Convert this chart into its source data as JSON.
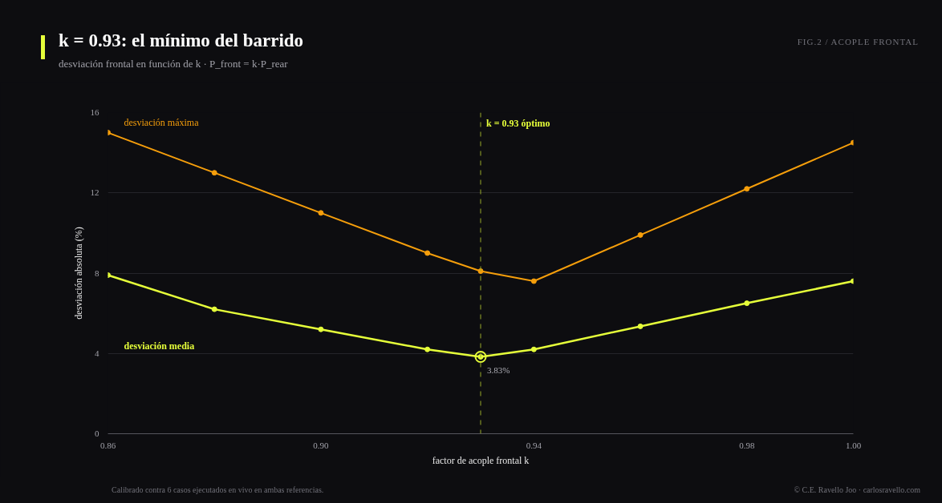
{
  "chart_data": {
    "type": "line",
    "title": "k = 0.93: el mínimo del barrido",
    "subtitle": "desviación frontal en función de k · P_front = k·P_rear",
    "xlabel": "factor de acople frontal k",
    "ylabel": "desviación absoluta (%)",
    "x": [
      0.86,
      0.88,
      0.9,
      0.92,
      0.93,
      0.94,
      0.96,
      0.98,
      1.0
    ],
    "series": [
      {
        "name": "desviación máxima",
        "color": "#f59e0b",
        "values": [
          15.0,
          13.0,
          11.0,
          9.0,
          8.1,
          7.6,
          9.9,
          12.2,
          14.5
        ]
      },
      {
        "name": "desviación media",
        "color": "#e6ff3a",
        "values": [
          7.9,
          6.2,
          5.2,
          4.2,
          3.83,
          4.2,
          5.35,
          6.5,
          7.6
        ]
      }
    ],
    "xlim": [
      0.86,
      1.0
    ],
    "xticks": [
      {
        "value": 0.86,
        "label": "0.86"
      },
      {
        "value": 0.9,
        "label": "0.90"
      },
      {
        "value": 0.94,
        "label": "0.94"
      },
      {
        "value": 0.98,
        "label": "0.98"
      },
      {
        "value": 1.0,
        "label": "1.00"
      }
    ],
    "ylim": [
      0,
      16
    ],
    "yticks": [
      0,
      4,
      8,
      12,
      16
    ],
    "grid": "y",
    "marker": "circle",
    "line_style": "solid",
    "legend": false,
    "ref_lines": [
      {
        "axis": "x",
        "value": 0.93,
        "label": "k = 0.93 óptimo",
        "color": "#9aab2a",
        "line_style": "dashed"
      }
    ],
    "annotations": [
      {
        "text": "3.83%",
        "x": 0.93,
        "y": 3.83
      },
      "FIG.2 / ACOPLE FRONTAL",
      "Calibrado contra 6 casos ejecutados en vivo en ambas referencias.",
      "© C.E. Ravello Joo · carlosravello.com"
    ]
  }
}
